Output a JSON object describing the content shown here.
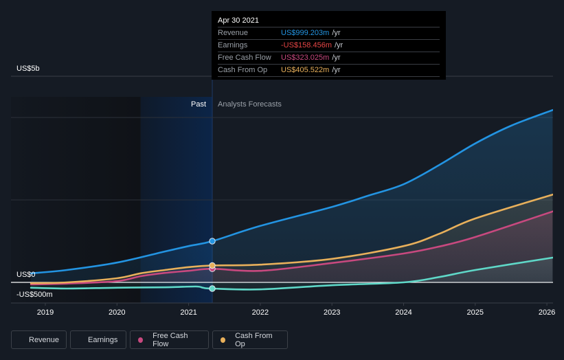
{
  "chart_data": {
    "type": "line",
    "title": "",
    "x_unit": "year",
    "xlim": [
      2018.8,
      2026.08
    ],
    "ylim": [
      -0.5,
      5.0
    ],
    "y_unit": "US$ billions",
    "y_tick_labels": [
      {
        "value": 5.0,
        "label": "US$5b"
      },
      {
        "value": 0.0,
        "label": "US$0"
      },
      {
        "value": -0.5,
        "label": "-US$500m"
      }
    ],
    "y_gridlines": [
      5.0,
      4.0,
      2.0,
      0.0,
      -0.5
    ],
    "x_ticks": [
      2019,
      2020,
      2021,
      2022,
      2023,
      2024,
      2025,
      2026
    ],
    "x_tick_labels": [
      "2019",
      "2020",
      "2021",
      "2022",
      "2023",
      "2024",
      "2025",
      "2026"
    ],
    "past_end": 2021.33,
    "highlight_start": 2020.33,
    "region_labels": {
      "past": "Past",
      "forecast": "Analysts Forecasts"
    },
    "legend_position": "bottom-left",
    "series": [
      {
        "name": "Revenue",
        "color": "#2394e2",
        "points": [
          [
            2018.8,
            0.22
          ],
          [
            2019.3,
            0.3
          ],
          [
            2020.0,
            0.48
          ],
          [
            2020.67,
            0.75
          ],
          [
            2021.0,
            0.88
          ],
          [
            2021.33,
            1.0
          ],
          [
            2022.0,
            1.37
          ],
          [
            2023.0,
            1.83
          ],
          [
            2023.5,
            2.1
          ],
          [
            2024.0,
            2.38
          ],
          [
            2024.5,
            2.85
          ],
          [
            2025.0,
            3.37
          ],
          [
            2025.5,
            3.8
          ],
          [
            2026.08,
            4.18
          ]
        ]
      },
      {
        "name": "Earnings",
        "color": "#5fd8c8",
        "points": [
          [
            2018.8,
            -0.13
          ],
          [
            2019.3,
            -0.15
          ],
          [
            2020.0,
            -0.13
          ],
          [
            2020.67,
            -0.12
          ],
          [
            2021.1,
            -0.1
          ],
          [
            2021.2,
            -0.13
          ],
          [
            2021.33,
            -0.15
          ],
          [
            2022.0,
            -0.17
          ],
          [
            2023.0,
            -0.07
          ],
          [
            2024.0,
            0.0
          ],
          [
            2024.5,
            0.13
          ],
          [
            2025.0,
            0.3
          ],
          [
            2026.08,
            0.6
          ]
        ]
      },
      {
        "name": "Free Cash Flow",
        "color": "#c8497f",
        "points": [
          [
            2018.8,
            -0.05
          ],
          [
            2019.3,
            -0.03
          ],
          [
            2020.0,
            0.03
          ],
          [
            2020.33,
            0.15
          ],
          [
            2020.67,
            0.23
          ],
          [
            2021.0,
            0.28
          ],
          [
            2021.33,
            0.33
          ],
          [
            2022.0,
            0.28
          ],
          [
            2023.0,
            0.47
          ],
          [
            2024.0,
            0.7
          ],
          [
            2024.5,
            0.87
          ],
          [
            2025.0,
            1.1
          ],
          [
            2026.08,
            1.72
          ]
        ]
      },
      {
        "name": "Cash From Op",
        "color": "#e8b05b",
        "points": [
          [
            2018.8,
            -0.02
          ],
          [
            2019.3,
            0.0
          ],
          [
            2020.0,
            0.1
          ],
          [
            2020.33,
            0.22
          ],
          [
            2020.67,
            0.3
          ],
          [
            2021.0,
            0.37
          ],
          [
            2021.33,
            0.41
          ],
          [
            2022.0,
            0.43
          ],
          [
            2023.0,
            0.57
          ],
          [
            2024.0,
            0.88
          ],
          [
            2024.5,
            1.18
          ],
          [
            2025.0,
            1.55
          ],
          [
            2026.08,
            2.13
          ]
        ]
      }
    ]
  },
  "tooltip": {
    "date": "Apr 30 2021",
    "unit": "/yr",
    "rows": [
      {
        "name": "Revenue",
        "value": "US$999.203m",
        "color": "#2394e2"
      },
      {
        "name": "Earnings",
        "value": "-US$158.456m",
        "color": "#e64545"
      },
      {
        "name": "Free Cash Flow",
        "value": "US$323.025m",
        "color": "#c8497f"
      },
      {
        "name": "Cash From Op",
        "value": "US$405.522m",
        "color": "#e8b05b"
      }
    ]
  },
  "legend": [
    {
      "label": "Revenue",
      "color": "#2394e2"
    },
    {
      "label": "Earnings",
      "color": "#5fd8c8"
    },
    {
      "label": "Free Cash Flow",
      "color": "#c8497f"
    },
    {
      "label": "Cash From Op",
      "color": "#e8b05b"
    }
  ]
}
